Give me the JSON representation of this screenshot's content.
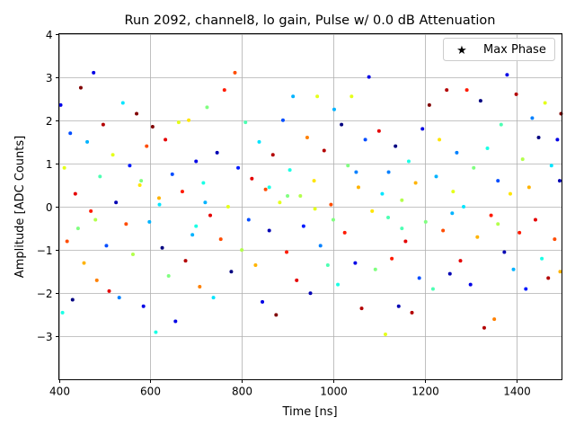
{
  "chart_data": {
    "type": "scatter",
    "title": "Run 2092, channel8, lo gain, Pulse w/ 0.0 dB Attenuation",
    "xlabel": "Time [ns]",
    "ylabel": "Amplitude [ADC Counts]",
    "xlim": [
      400,
      1500
    ],
    "ylim": [
      -4,
      4
    ],
    "xticks": [
      400,
      600,
      800,
      1000,
      1200,
      1400
    ],
    "yticks": [
      -3,
      -2,
      -1,
      0,
      1,
      2,
      3,
      4
    ],
    "grid": true,
    "colormap": "jet",
    "legend": {
      "position": "top-right",
      "entries": [
        {
          "label": "Max Phase",
          "marker": "star"
        }
      ]
    },
    "points_format": [
      "time_ns",
      "amplitude",
      "color_value_0_to_1"
    ],
    "points": [
      [
        404,
        2.35,
        0.1
      ],
      [
        408,
        -2.45,
        0.4
      ],
      [
        412,
        0.9,
        0.6
      ],
      [
        418,
        -0.8,
        0.8
      ],
      [
        425,
        1.7,
        0.2
      ],
      [
        430,
        -2.15,
        0.0
      ],
      [
        436,
        0.3,
        0.9
      ],
      [
        442,
        -0.5,
        0.5
      ],
      [
        448,
        2.75,
        1.0
      ],
      [
        455,
        -1.3,
        0.7
      ],
      [
        462,
        1.5,
        0.3
      ],
      [
        470,
        -0.1,
        0.85
      ],
      [
        476,
        3.1,
        0.1
      ],
      [
        483,
        -1.7,
        0.75
      ],
      [
        490,
        0.7,
        0.45
      ],
      [
        497,
        1.9,
        0.95
      ],
      [
        504,
        -0.9,
        0.2
      ],
      [
        510,
        -1.95,
        0.9
      ],
      [
        518,
        1.2,
        0.6
      ],
      [
        525,
        0.1,
        0.05
      ],
      [
        532,
        -2.1,
        0.25
      ],
      [
        540,
        2.4,
        0.35
      ],
      [
        547,
        -0.4,
        0.8
      ],
      [
        555,
        0.95,
        0.15
      ],
      [
        562,
        -1.1,
        0.55
      ],
      [
        570,
        2.15,
        1.0
      ],
      [
        577,
        0.5,
        0.65
      ],
      [
        585,
        -2.3,
        0.1
      ],
      [
        592,
        1.4,
        0.8
      ],
      [
        598,
        -0.35,
        0.3
      ],
      [
        605,
        1.85,
        1.0
      ],
      [
        612,
        -2.9,
        0.4
      ],
      [
        619,
        0.2,
        0.7
      ],
      [
        626,
        -0.95,
        0.0
      ],
      [
        633,
        1.55,
        0.9
      ],
      [
        640,
        -1.6,
        0.5
      ],
      [
        648,
        0.75,
        0.2
      ],
      [
        655,
        -2.65,
        0.1
      ],
      [
        662,
        1.95,
        0.6
      ],
      [
        670,
        0.35,
        0.85
      ],
      [
        677,
        -1.25,
        0.95
      ],
      [
        684,
        2.0,
        0.65
      ],
      [
        692,
        -0.65,
        0.3
      ],
      [
        700,
        1.05,
        0.1
      ],
      [
        708,
        -1.85,
        0.75
      ],
      [
        716,
        0.55,
        0.4
      ],
      [
        724,
        2.3,
        0.5
      ],
      [
        731,
        -0.2,
        0.9
      ],
      [
        738,
        -2.1,
        0.35
      ],
      [
        746,
        1.25,
        0.05
      ],
      [
        754,
        -0.75,
        0.8
      ],
      [
        762,
        2.7,
        0.85
      ],
      [
        770,
        0.0,
        0.6
      ],
      [
        777,
        -1.5,
        0.0
      ],
      [
        785,
        3.1,
        0.8
      ],
      [
        792,
        0.9,
        0.15
      ],
      [
        800,
        -1.0,
        0.55
      ],
      [
        808,
        1.95,
        0.45
      ],
      [
        815,
        -0.3,
        0.2
      ],
      [
        822,
        0.65,
        0.9
      ],
      [
        830,
        -1.35,
        0.7
      ],
      [
        838,
        1.5,
        0.35
      ],
      [
        845,
        -2.2,
        0.1
      ],
      [
        852,
        0.4,
        0.8
      ],
      [
        860,
        -0.55,
        0.05
      ],
      [
        868,
        1.2,
        0.95
      ],
      [
        875,
        -2.5,
        1.0
      ],
      [
        883,
        0.1,
        0.6
      ],
      [
        890,
        2.0,
        0.2
      ],
      [
        898,
        -1.05,
        0.85
      ],
      [
        905,
        0.85,
        0.4
      ],
      [
        912,
        2.55,
        0.3
      ],
      [
        920,
        -1.7,
        0.9
      ],
      [
        928,
        0.25,
        0.55
      ],
      [
        935,
        -0.45,
        0.15
      ],
      [
        943,
        1.6,
        0.75
      ],
      [
        950,
        -2.0,
        0.05
      ],
      [
        958,
        0.6,
        0.65
      ],
      [
        965,
        2.55,
        0.6
      ],
      [
        972,
        -0.9,
        0.25
      ],
      [
        980,
        1.3,
        0.95
      ],
      [
        988,
        -1.35,
        0.45
      ],
      [
        995,
        0.05,
        0.8
      ],
      [
        1002,
        2.25,
        0.3
      ],
      [
        1010,
        -1.8,
        0.4
      ],
      [
        1018,
        1.9,
        0.0
      ],
      [
        1025,
        -0.6,
        0.85
      ],
      [
        1032,
        0.95,
        0.5
      ],
      [
        1040,
        2.55,
        0.6
      ],
      [
        1048,
        -1.3,
        0.1
      ],
      [
        1055,
        0.45,
        0.7
      ],
      [
        1062,
        -2.35,
        0.95
      ],
      [
        1070,
        1.55,
        0.2
      ],
      [
        1078,
        3.0,
        0.1
      ],
      [
        1085,
        -0.1,
        0.65
      ],
      [
        1092,
        -1.45,
        0.5
      ],
      [
        1100,
        1.75,
        0.9
      ],
      [
        1107,
        0.3,
        0.35
      ],
      [
        1114,
        -2.95,
        0.6
      ],
      [
        1121,
        0.8,
        0.25
      ],
      [
        1128,
        -1.2,
        0.85
      ],
      [
        1136,
        1.4,
        0.0
      ],
      [
        1143,
        -2.3,
        0.05
      ],
      [
        1150,
        0.15,
        0.55
      ],
      [
        1158,
        -0.8,
        0.9
      ],
      [
        1165,
        1.05,
        0.4
      ],
      [
        1172,
        -2.45,
        0.95
      ],
      [
        1180,
        0.55,
        0.7
      ],
      [
        1188,
        -1.65,
        0.2
      ],
      [
        1195,
        1.8,
        0.1
      ],
      [
        1202,
        -0.35,
        0.5
      ],
      [
        1210,
        2.35,
        1.0
      ],
      [
        1218,
        -1.9,
        0.45
      ],
      [
        1225,
        0.7,
        0.3
      ],
      [
        1232,
        1.55,
        0.65
      ],
      [
        1240,
        -0.55,
        0.8
      ],
      [
        1248,
        2.7,
        0.95
      ],
      [
        1255,
        -1.55,
        0.05
      ],
      [
        1262,
        0.35,
        0.6
      ],
      [
        1270,
        1.25,
        0.25
      ],
      [
        1278,
        -1.25,
        0.9
      ],
      [
        1285,
        0.0,
        0.35
      ],
      [
        1292,
        2.7,
        0.85
      ],
      [
        1300,
        -1.8,
        0.1
      ],
      [
        1307,
        0.9,
        0.5
      ],
      [
        1315,
        -0.7,
        0.7
      ],
      [
        1322,
        2.45,
        0.0
      ],
      [
        1330,
        -2.8,
        0.95
      ],
      [
        1337,
        1.35,
        0.4
      ],
      [
        1345,
        -0.2,
        0.85
      ],
      [
        1352,
        -2.6,
        0.75
      ],
      [
        1360,
        0.6,
        0.2
      ],
      [
        1367,
        1.9,
        0.45
      ],
      [
        1374,
        -1.05,
        0.05
      ],
      [
        1380,
        3.05,
        0.1
      ],
      [
        1387,
        0.3,
        0.65
      ],
      [
        1394,
        -1.45,
        0.3
      ],
      [
        1400,
        2.6,
        0.95
      ],
      [
        1407,
        -0.6,
        0.85
      ],
      [
        1414,
        1.1,
        0.55
      ],
      [
        1421,
        -1.9,
        0.15
      ],
      [
        1428,
        0.45,
        0.7
      ],
      [
        1435,
        2.05,
        0.25
      ],
      [
        1442,
        -0.3,
        0.9
      ],
      [
        1449,
        1.6,
        0.0
      ],
      [
        1456,
        -1.2,
        0.4
      ],
      [
        1463,
        2.4,
        0.6
      ],
      [
        1470,
        -1.65,
        0.95
      ],
      [
        1477,
        0.95,
        0.35
      ],
      [
        1484,
        -0.75,
        0.8
      ],
      [
        1490,
        1.55,
        0.1
      ],
      [
        1496,
        -1.5,
        0.7
      ],
      [
        1498,
        2.15,
        1.0
      ],
      [
        1495,
        0.6,
        0.05
      ],
      [
        1120,
        -0.25,
        0.45
      ],
      [
        960,
        -0.05,
        0.6
      ],
      [
        860,
        0.45,
        0.4
      ],
      [
        720,
        0.1,
        0.3
      ],
      [
        580,
        0.6,
        0.5
      ],
      [
        480,
        -0.3,
        0.55
      ],
      [
        1050,
        0.8,
        0.25
      ],
      [
        1150,
        -0.5,
        0.45
      ],
      [
        1260,
        -0.15,
        0.3
      ],
      [
        1360,
        -0.4,
        0.55
      ],
      [
        900,
        0.25,
        0.5
      ],
      [
        700,
        -0.45,
        0.4
      ],
      [
        620,
        0.05,
        0.35
      ],
      [
        1000,
        -0.3,
        0.5
      ]
    ]
  }
}
